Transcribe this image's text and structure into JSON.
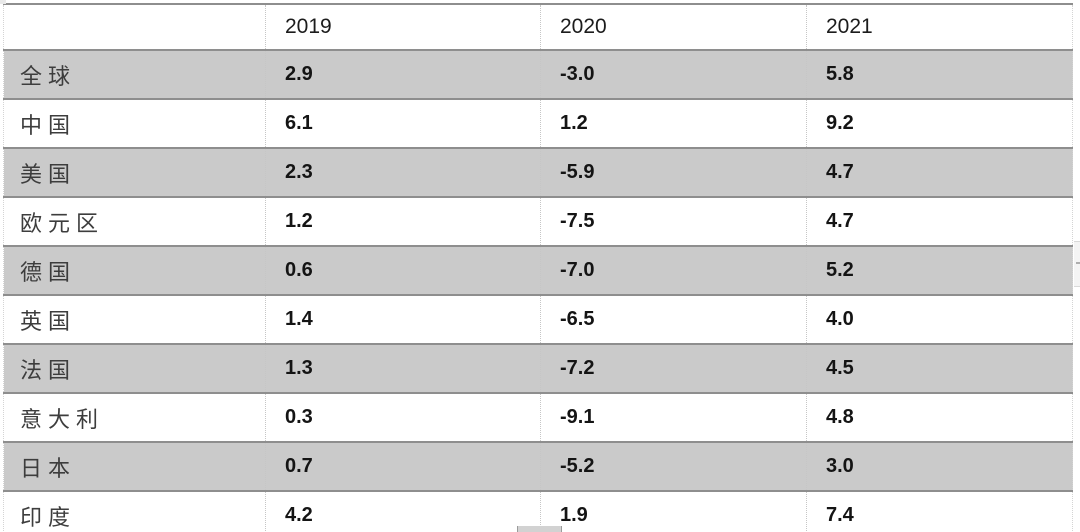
{
  "table": {
    "columns": [
      "",
      "2019",
      "2020",
      "2021"
    ],
    "rows": [
      {
        "label": "全球",
        "values": [
          "2.9",
          "-3.0",
          "5.8"
        ]
      },
      {
        "label": "中国",
        "values": [
          "6.1",
          "1.2",
          "9.2"
        ]
      },
      {
        "label": "美国",
        "values": [
          "2.3",
          "-5.9",
          "4.7"
        ]
      },
      {
        "label": "欧元区",
        "values": [
          "1.2",
          "-7.5",
          "4.7"
        ]
      },
      {
        "label": "德国",
        "values": [
          "0.6",
          "-7.0",
          "5.2"
        ]
      },
      {
        "label": "英国",
        "values": [
          "1.4",
          "-6.5",
          "4.0"
        ]
      },
      {
        "label": "法国",
        "values": [
          "1.3",
          "-7.2",
          "4.5"
        ]
      },
      {
        "label": "意大利",
        "values": [
          "0.3",
          "-9.1",
          "4.8"
        ]
      },
      {
        "label": "日本",
        "values": [
          "0.7",
          "-5.2",
          "3.0"
        ]
      },
      {
        "label": "印度",
        "values": [
          "4.2",
          "1.9",
          "7.4"
        ]
      }
    ]
  },
  "chart_data": {
    "type": "table",
    "columns": [
      "",
      "2019",
      "2020",
      "2021"
    ],
    "row_labels": [
      "全球",
      "中国",
      "美国",
      "欧元区",
      "德国",
      "英国",
      "法国",
      "意大利",
      "日本",
      "印度"
    ],
    "series": [
      {
        "name": "2019",
        "values": [
          2.9,
          6.1,
          2.3,
          1.2,
          0.6,
          1.4,
          1.3,
          0.3,
          0.7,
          4.2
        ]
      },
      {
        "name": "2020",
        "values": [
          -3.0,
          1.2,
          -5.9,
          -7.5,
          -7.0,
          -6.5,
          -7.2,
          -9.1,
          -5.2,
          1.9
        ]
      },
      {
        "name": "2021",
        "values": [
          5.8,
          9.2,
          4.7,
          4.7,
          5.2,
          4.0,
          4.5,
          4.8,
          3.0,
          7.4
        ]
      }
    ],
    "layout": {
      "zebra_striping": true,
      "first_data_row_shaded": true,
      "value_alignment": "left",
      "values_bold": true
    }
  },
  "colors": {
    "row_shaded_bg": "#cacaca",
    "row_plain_bg": "#ffffff",
    "horizontal_rule": "#8e8e8e",
    "vertical_divider": "#c6c6c6",
    "header_text": "#1c1c1c",
    "label_text": "#3d3d3d",
    "value_text": "#141414"
  }
}
